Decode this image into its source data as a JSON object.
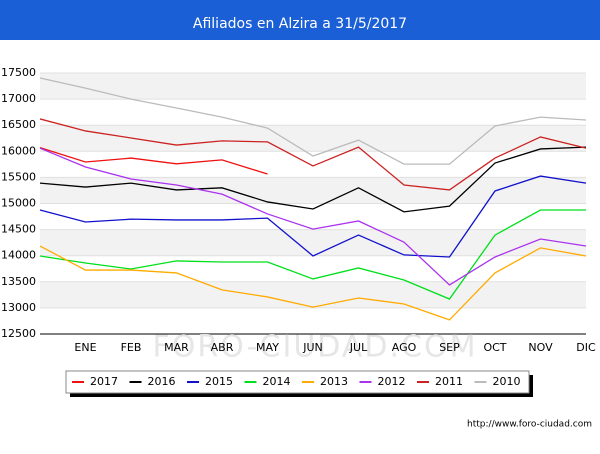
{
  "chart_data": {
    "type": "line",
    "title": "Afiliados en Alzira a 31/5/2017",
    "categories": [
      null,
      "ENE",
      "FEB",
      "MAR",
      "ABR",
      "MAY",
      "JUN",
      "JUL",
      "AGO",
      "SEP",
      "OCT",
      "NOV",
      "DIC"
    ],
    "series": [
      {
        "name": "2017",
        "color": "#ee1111",
        "values": [
          16070,
          15795,
          15870,
          15760,
          15835,
          15565,
          null,
          null,
          null,
          null,
          null,
          null,
          null
        ]
      },
      {
        "name": "2016",
        "color": "#000000",
        "values": [
          15390,
          15315,
          15390,
          15260,
          15300,
          15030,
          14895,
          15300,
          14840,
          14950,
          15775,
          16045,
          16080
        ]
      },
      {
        "name": "2015",
        "color": "#1111cc",
        "values": [
          14875,
          14645,
          14700,
          14685,
          14685,
          14720,
          13995,
          14395,
          14015,
          13975,
          15240,
          15525,
          15390
        ]
      },
      {
        "name": "2014",
        "color": "#00e01a",
        "values": [
          13995,
          13860,
          13745,
          13900,
          13880,
          13880,
          13555,
          13765,
          13535,
          13170,
          14395,
          14875,
          14875
        ]
      },
      {
        "name": "2013",
        "color": "#ffaa00",
        "values": [
          14185,
          13725,
          13725,
          13670,
          13345,
          13210,
          13015,
          13190,
          13075,
          12770,
          13670,
          14150,
          13995
        ]
      },
      {
        "name": "2012",
        "color": "#aa33ee",
        "values": [
          16060,
          15700,
          15470,
          15355,
          15180,
          14800,
          14510,
          14665,
          14260,
          13440,
          13975,
          14320,
          14185
        ]
      },
      {
        "name": "2011",
        "color": "#cc2222",
        "values": [
          16620,
          16390,
          16255,
          16120,
          16200,
          16180,
          15720,
          16080,
          15355,
          15260,
          15870,
          16275,
          16060
        ]
      },
      {
        "name": "2010",
        "color": "#bbbbbb",
        "values": [
          17405,
          17210,
          17000,
          16830,
          16655,
          16445,
          15910,
          16215,
          15755,
          15755,
          16485,
          16655,
          16600
        ]
      }
    ],
    "ylim": [
      12500,
      17500
    ],
    "yticks": [
      12500,
      13000,
      13500,
      14000,
      14500,
      15000,
      15500,
      16000,
      16500,
      17000,
      17500
    ],
    "grid": true,
    "watermark": "FORO-CIUDAD.COM",
    "source": "http://www.foro-ciudad.com"
  }
}
